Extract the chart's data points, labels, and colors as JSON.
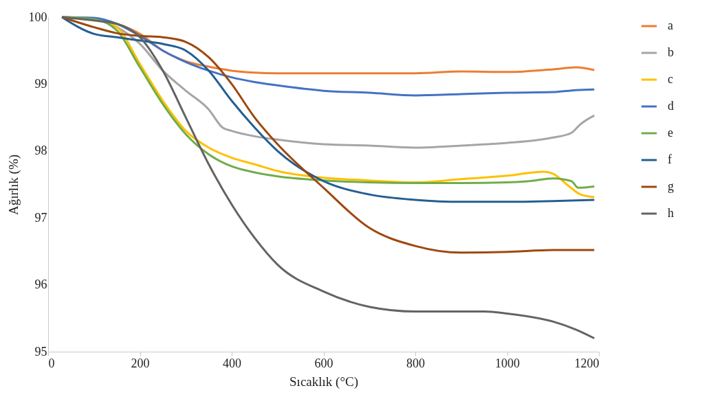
{
  "chart_data": {
    "type": "line",
    "xlabel": "Sıcaklık (°C)",
    "ylabel": "Ağırlık (%)",
    "xlim": [
      0,
      1200
    ],
    "xticks": [
      0,
      200,
      400,
      600,
      800,
      1000,
      1200
    ],
    "ylim": [
      95,
      100
    ],
    "yticks": [
      95,
      96,
      97,
      98,
      99,
      100
    ],
    "grid": false,
    "legend": "right",
    "marker": "none",
    "line_style": "solid",
    "series": [
      {
        "name": "a",
        "color": "#ed7d31",
        "x": [
          30,
          100,
          150,
          200,
          250,
          300,
          350,
          400,
          450,
          500,
          600,
          700,
          800,
          900,
          1000,
          1100,
          1150,
          1190
        ],
        "values": [
          100,
          99.98,
          99.9,
          99.75,
          99.5,
          99.34,
          99.26,
          99.2,
          99.17,
          99.16,
          99.16,
          99.16,
          99.16,
          99.19,
          99.18,
          99.22,
          99.25,
          99.21
        ]
      },
      {
        "name": "b",
        "color": "#a5a5a5",
        "x": [
          30,
          100,
          150,
          200,
          250,
          300,
          350,
          380,
          400,
          450,
          500,
          600,
          700,
          800,
          900,
          1000,
          1100,
          1140,
          1160,
          1190
        ],
        "values": [
          100,
          99.97,
          99.85,
          99.6,
          99.2,
          98.9,
          98.62,
          98.35,
          98.3,
          98.22,
          98.17,
          98.1,
          98.08,
          98.05,
          98.08,
          98.12,
          98.2,
          98.27,
          98.4,
          98.53
        ]
      },
      {
        "name": "c",
        "color": "#ffc000",
        "x": [
          30,
          100,
          150,
          200,
          250,
          300,
          350,
          400,
          450,
          500,
          600,
          700,
          800,
          900,
          1000,
          1080,
          1100,
          1130,
          1160,
          1190
        ],
        "values": [
          100,
          99.98,
          99.85,
          99.3,
          98.75,
          98.3,
          98.05,
          97.9,
          97.8,
          97.7,
          97.6,
          97.56,
          97.53,
          97.58,
          97.63,
          97.69,
          97.66,
          97.5,
          97.35,
          97.31
        ]
      },
      {
        "name": "d",
        "color": "#4472c4",
        "x": [
          30,
          100,
          150,
          200,
          250,
          300,
          350,
          400,
          450,
          500,
          600,
          700,
          800,
          900,
          1000,
          1100,
          1150,
          1190
        ],
        "values": [
          100,
          99.99,
          99.9,
          99.72,
          99.5,
          99.33,
          99.2,
          99.1,
          99.03,
          98.98,
          98.9,
          98.87,
          98.83,
          98.85,
          98.87,
          98.88,
          98.91,
          98.92
        ]
      },
      {
        "name": "e",
        "color": "#70ad47",
        "x": [
          30,
          100,
          150,
          200,
          250,
          300,
          350,
          400,
          450,
          500,
          600,
          700,
          800,
          900,
          1000,
          1050,
          1100,
          1140,
          1155,
          1190
        ],
        "values": [
          100,
          99.97,
          99.8,
          99.25,
          98.7,
          98.25,
          97.95,
          97.77,
          97.68,
          97.62,
          97.56,
          97.53,
          97.52,
          97.52,
          97.53,
          97.55,
          97.59,
          97.55,
          97.45,
          97.47
        ]
      },
      {
        "name": "f",
        "color": "#255e91",
        "x": [
          30,
          100,
          150,
          200,
          250,
          300,
          350,
          400,
          450,
          500,
          600,
          700,
          800,
          900,
          1000,
          1100,
          1190
        ],
        "values": [
          100,
          99.75,
          99.7,
          99.65,
          99.6,
          99.5,
          99.2,
          98.75,
          98.35,
          98.0,
          97.55,
          97.35,
          97.27,
          97.24,
          97.24,
          97.25,
          97.27
        ]
      },
      {
        "name": "g",
        "color": "#9e480e",
        "x": [
          30,
          100,
          150,
          200,
          250,
          300,
          350,
          400,
          450,
          500,
          600,
          700,
          800,
          900,
          1000,
          1100,
          1190
        ],
        "values": [
          100,
          99.85,
          99.76,
          99.72,
          99.7,
          99.63,
          99.4,
          99.0,
          98.5,
          98.1,
          97.45,
          96.85,
          96.58,
          96.48,
          96.49,
          96.52,
          96.52
        ]
      },
      {
        "name": "h",
        "color": "#636363",
        "x": [
          30,
          100,
          150,
          200,
          250,
          300,
          350,
          400,
          450,
          500,
          600,
          700,
          800,
          900,
          950,
          1000,
          1100,
          1150,
          1190
        ],
        "values": [
          100,
          99.95,
          99.9,
          99.7,
          99.2,
          98.5,
          97.8,
          97.2,
          96.7,
          96.3,
          95.9,
          95.67,
          95.6,
          95.6,
          95.6,
          95.57,
          95.45,
          95.33,
          95.2
        ]
      }
    ]
  }
}
